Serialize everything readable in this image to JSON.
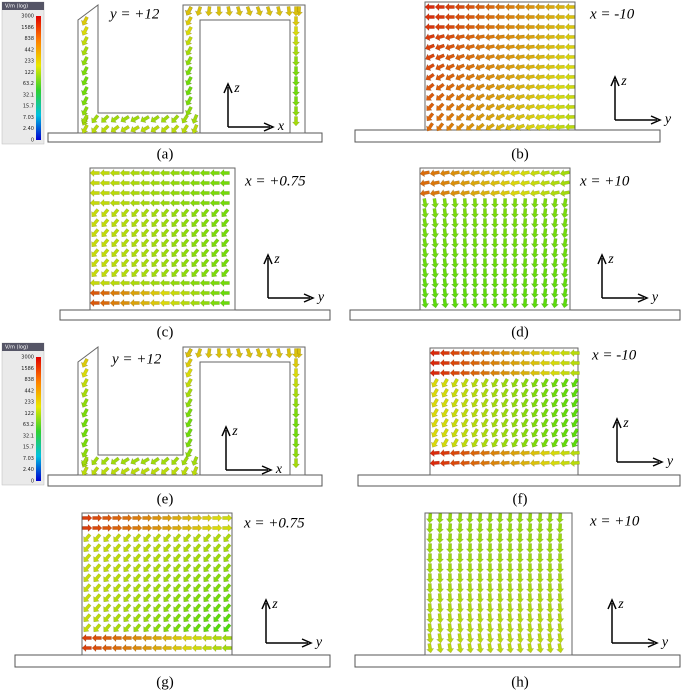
{
  "colorbars": [
    {
      "title": "V/m (log)",
      "labels": [
        "3000",
        "1586",
        "838",
        "442",
        "233",
        "122",
        "63.2",
        "32.1",
        "15.7",
        "7.03",
        "2.40",
        "0"
      ]
    },
    {
      "title": "V/m (log)",
      "labels": [
        "3000",
        "1586",
        "838",
        "442",
        "233",
        "122",
        "63.2",
        "32.1",
        "15.7",
        "7.03",
        "2.40",
        "0"
      ]
    }
  ],
  "panels": [
    {
      "caption": "(a)",
      "plane": "y = +12",
      "axes": {
        "vertical": "z",
        "horizontal": "x"
      }
    },
    {
      "caption": "(b)",
      "plane": "x = -10",
      "axes": {
        "vertical": "z",
        "horizontal": "y"
      }
    },
    {
      "caption": "(c)",
      "plane": "x = +0.75",
      "axes": {
        "vertical": "z",
        "horizontal": "y"
      }
    },
    {
      "caption": "(d)",
      "plane": "x = +10",
      "axes": {
        "vertical": "z",
        "horizontal": "y"
      }
    },
    {
      "caption": "(e)",
      "plane": "y = +12",
      "axes": {
        "vertical": "z",
        "horizontal": "x"
      }
    },
    {
      "caption": "(f)",
      "plane": "x = -10",
      "axes": {
        "vertical": "z",
        "horizontal": "y"
      }
    },
    {
      "caption": "(g)",
      "plane": "x = +0.75",
      "axes": {
        "vertical": "z",
        "horizontal": "y"
      }
    },
    {
      "caption": "(h)",
      "plane": "x = +10",
      "axes": {
        "vertical": "z",
        "horizontal": "y"
      }
    }
  ]
}
